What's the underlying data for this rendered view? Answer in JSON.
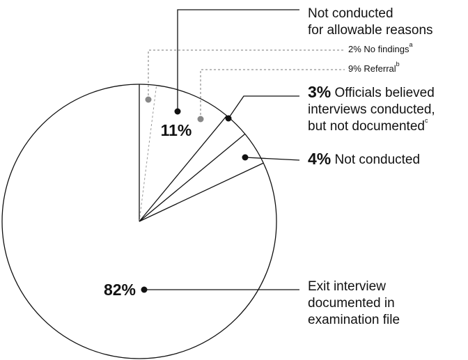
{
  "chart_data": {
    "type": "pie",
    "categories": [
      [
        "No findings"
      ],
      [
        "Referral"
      ],
      [
        "Officials believed",
        "interviews conducted,",
        "but not documented"
      ],
      [
        "Not conducted"
      ],
      [
        "Exit interview",
        "documented in",
        "examination file"
      ]
    ],
    "values": [
      2,
      9,
      3,
      4,
      82
    ],
    "value_labels": [
      "2%",
      "9%",
      "3%",
      "4%",
      "82%"
    ],
    "footnotes": [
      "a",
      "b",
      "c",
      null,
      null
    ],
    "colors": [
      "#ffffff",
      "#ffffff",
      "#ffffff",
      "#ffffff",
      "#ffffff"
    ],
    "group": {
      "label": [
        "Not conducted",
        "for allowable reasons"
      ],
      "value": 11,
      "value_label": "11%"
    }
  }
}
